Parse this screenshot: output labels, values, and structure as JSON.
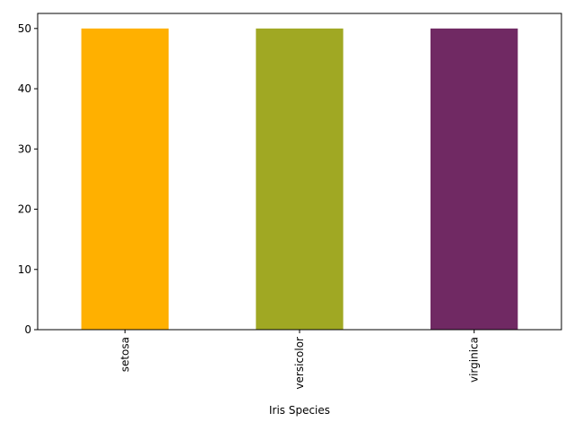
{
  "chart_data": {
    "type": "bar",
    "categories": [
      "setosa",
      "versicolor",
      "virginica"
    ],
    "values": [
      50,
      50,
      50
    ],
    "colors": [
      "#FFB000",
      "#A0A823",
      "#702963"
    ],
    "title": "",
    "xlabel": "Iris Species",
    "ylabel": "",
    "ylim": [
      0,
      52.5
    ],
    "yticks": [
      0,
      10,
      20,
      30,
      40,
      50
    ],
    "ytick_labels": [
      "0",
      "10",
      "20",
      "30",
      "40",
      "50"
    ],
    "grid": false,
    "legend": "none"
  }
}
